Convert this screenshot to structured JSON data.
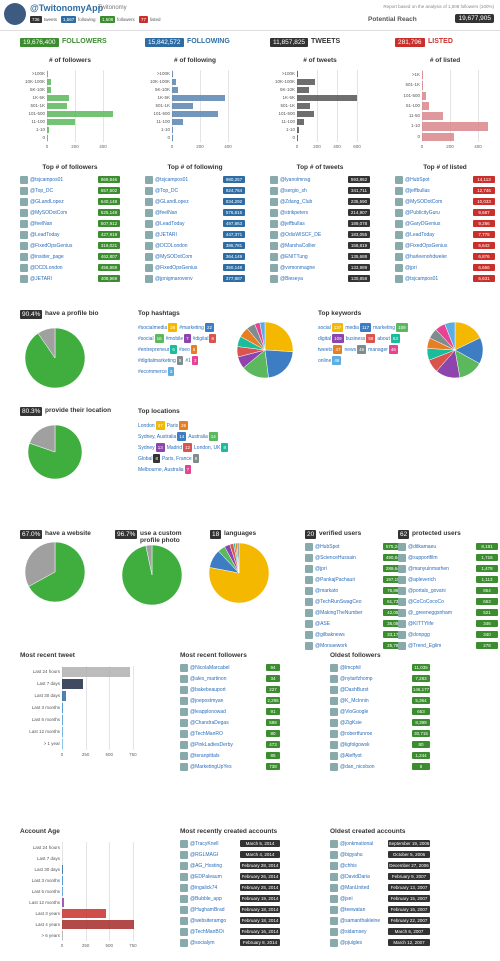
{
  "header": {
    "app_name": "@TwitonomyApp",
    "subtitle": "Twitonomy",
    "stats": [
      {
        "value": "736",
        "label": "tweets"
      },
      {
        "value": "1,567",
        "label": "following"
      },
      {
        "value": "1,508",
        "label": "followers"
      },
      {
        "value": "77",
        "label": "listed"
      }
    ],
    "report_note": "Report based on the analysis of 1,508 followers (100%)",
    "reach_label": "Potential Reach",
    "reach_value": "19,677,905"
  },
  "summary": [
    {
      "value": "19,676,400",
      "label": "FOLLOWERS",
      "color": "#3c8d2f"
    },
    {
      "value": "15,842,572",
      "label": "FOLLOWING",
      "color": "#2e6da4"
    },
    {
      "value": "11,857,825",
      "label": "TWEETS",
      "color": "#333333"
    },
    {
      "value": "281,796",
      "label": "LISTED",
      "color": "#c9302c"
    }
  ],
  "histograms": [
    {
      "title": "# of followers",
      "color": "#5cb85c",
      "categories": [
        ">100K",
        "10K-100K",
        "5K-10K",
        "1K-5K",
        "501-1K",
        "101-500",
        "11-100",
        "1-10",
        "0"
      ],
      "values": [
        8,
        25,
        30,
        160,
        140,
        470,
        200,
        15,
        2
      ],
      "xlim": [
        0,
        500
      ],
      "xticks": [
        0,
        200,
        400
      ]
    },
    {
      "title": "# of following",
      "color": "#5b84b1",
      "categories": [
        ">100K",
        "10K-100K",
        "5K-10K",
        "1K-5K",
        "501-1K",
        "101-500",
        "11-100",
        "1-10",
        "0"
      ],
      "values": [
        10,
        30,
        40,
        380,
        150,
        330,
        80,
        10,
        2
      ],
      "xlim": [
        0,
        500
      ],
      "xticks": [
        0,
        200,
        400
      ]
    },
    {
      "title": "# of tweets",
      "color": "#555555",
      "categories": [
        ">100K",
        "10K-100K",
        "5K-10K",
        "1K-5K",
        "501-1K",
        "101-500",
        "11-100",
        "1-10",
        "0"
      ],
      "values": [
        5,
        180,
        120,
        600,
        130,
        170,
        70,
        20,
        10
      ],
      "xlim": [
        0,
        700
      ],
      "xticks": [
        0,
        200,
        400,
        600
      ]
    },
    {
      "title": "# of listed",
      "color": "#d9868a",
      "categories": [
        ">1K",
        "501-1K",
        "101-500",
        "51-100",
        "11-50",
        "1-10",
        "0"
      ],
      "values": [
        2,
        10,
        30,
        50,
        150,
        470,
        230
      ],
      "xlim": [
        0,
        500
      ],
      "xticks": [
        0,
        200,
        400
      ]
    }
  ],
  "top_lists": [
    {
      "title": "Top # of followers",
      "badge_color": "#3c8d2f",
      "items": [
        {
          "name": "@tsjcampos01",
          "value": "869,846"
        },
        {
          "name": "@Top_DC",
          "value": "657,602"
        },
        {
          "name": "@GLandLopez",
          "value": "640,148"
        },
        {
          "name": "@MySODotCom",
          "value": "525,149"
        },
        {
          "name": "@feelNan",
          "value": "507,912"
        },
        {
          "name": "@LeadToday",
          "value": "427,919"
        },
        {
          "name": "@FixedOpsGenius",
          "value": "319,021"
        },
        {
          "name": "@insider_page",
          "value": "462,807"
        },
        {
          "name": "@DCDLondon",
          "value": "458,859"
        },
        {
          "name": "@JETARI",
          "value": "408,969"
        }
      ]
    },
    {
      "title": "Top # of following",
      "badge_color": "#2e6da4",
      "items": [
        {
          "name": "@tsjcampos01",
          "value": "980,257"
        },
        {
          "name": "@Top_DC",
          "value": "924,764"
        },
        {
          "name": "@GLandLopez",
          "value": "834,292"
        },
        {
          "name": "@feelNan",
          "value": "576,815"
        },
        {
          "name": "@LeadToday",
          "value": "497,863"
        },
        {
          "name": "@JETARI",
          "value": "447,371"
        },
        {
          "name": "@DCDLondon",
          "value": "386,781"
        },
        {
          "name": "@MySODotCom",
          "value": "364,149"
        },
        {
          "name": "@FixedOpsGenius",
          "value": "350,148"
        },
        {
          "name": "@jpnigmarovenv",
          "value": "377,887"
        }
      ]
    },
    {
      "title": "Top # of tweets",
      "badge_color": "#333333",
      "items": [
        {
          "name": "@lyanolmnsg",
          "value": "593,862"
        },
        {
          "name": "@sergio_sh",
          "value": "341,711"
        },
        {
          "name": "@Zdang_Club",
          "value": "235,590"
        },
        {
          "name": "@strikpeters",
          "value": "214,907"
        },
        {
          "name": "@jeffbullas",
          "value": "189,078"
        },
        {
          "name": "@OdisWISCF_DE",
          "value": "183,055"
        },
        {
          "name": "@MarshaCollier",
          "value": "158,819"
        },
        {
          "name": "@ENITTung",
          "value": "135,688"
        },
        {
          "name": "@vvmonmagne",
          "value": "133,989"
        },
        {
          "name": "@Bieseya",
          "value": "130,858"
        }
      ]
    },
    {
      "title": "Top # of listed",
      "badge_color": "#c9302c",
      "items": [
        {
          "name": "@HubSpot",
          "value": "14,113"
        },
        {
          "name": "@jeffbullas",
          "value": "12,746"
        },
        {
          "name": "@MySODotCom",
          "value": "10,033"
        },
        {
          "name": "@PublicityGuru",
          "value": "9,687"
        },
        {
          "name": "@GaryDGenius",
          "value": "9,286"
        },
        {
          "name": "@LeadToday",
          "value": "7,775"
        },
        {
          "name": "@FixedOpsGenius",
          "value": "6,642"
        },
        {
          "name": "@harleenohdweler",
          "value": "6,876"
        },
        {
          "name": "@jpri",
          "value": "6,656"
        },
        {
          "name": "@tsjcampos01",
          "value": "6,631"
        }
      ]
    }
  ],
  "bio": {
    "percent": {
      "value": 90.4,
      "label": "90.4%"
    },
    "label": "have a profile bio",
    "color": "#3fae3f",
    "rest_color": "#a0a0a0"
  },
  "hashtags": {
    "title": "Top hashtags",
    "items": [
      {
        "name": "#socialmedia",
        "count": 26,
        "color": "#f5b800"
      },
      {
        "name": "#marketing",
        "count": 22,
        "color": "#3c7dc4"
      },
      {
        "name": "#social",
        "count": 16,
        "color": "#5cb85c"
      },
      {
        "name": "#mobile",
        "count": 7,
        "color": "#8e44ad"
      },
      {
        "name": "#digital",
        "count": 6,
        "color": "#d9534f"
      },
      {
        "name": "#entrepreneur",
        "count": 6,
        "color": "#1abc9c"
      },
      {
        "name": "#seo",
        "count": 6,
        "color": "#e67e22"
      },
      {
        "name": "#digitalmarketing",
        "count": 5,
        "color": "#7f8c8d"
      },
      {
        "name": "#1",
        "count": 3,
        "color": "#e84393"
      },
      {
        "name": "#ecommerce",
        "count": 3,
        "color": "#5dade2"
      }
    ]
  },
  "keywords": {
    "title": "Top keywords",
    "items": [
      {
        "name": "social",
        "count": 137,
        "color": "#f5b800"
      },
      {
        "name": "media",
        "count": 117,
        "color": "#3c7dc4"
      },
      {
        "name": "marketing",
        "count": 109,
        "color": "#5cb85c"
      },
      {
        "name": "digital",
        "count": 109,
        "color": "#8e44ad"
      },
      {
        "name": "business",
        "count": 59,
        "color": "#d9534f"
      },
      {
        "name": "about",
        "count": 53,
        "color": "#1abc9c"
      },
      {
        "name": "tweets",
        "count": 47,
        "color": "#e67e22"
      },
      {
        "name": "news",
        "count": 46,
        "color": "#7f8c8d"
      },
      {
        "name": "manager",
        "count": 46,
        "color": "#e84393"
      },
      {
        "name": "online",
        "count": 46,
        "color": "#5dade2"
      }
    ]
  },
  "location": {
    "percent": {
      "value": 80.3,
      "label": "80.3%"
    },
    "label": "provide their location",
    "color": "#3fae3f",
    "rest_color": "#a0a0a0"
  },
  "locations": {
    "title": "Top locations",
    "items": [
      {
        "name": "London",
        "count": 37,
        "color": "#f5b800"
      },
      {
        "name": "Paris",
        "count": 26,
        "color": "#e67e22"
      },
      {
        "name": "Sydney, Australia",
        "count": 14,
        "color": "#3c7dc4"
      },
      {
        "name": "Australia",
        "count": 14,
        "color": "#5cb85c"
      },
      {
        "name": "Sydney",
        "count": 13,
        "color": "#8e44ad"
      },
      {
        "name": "Madrid",
        "count": 12,
        "color": "#d9534f"
      },
      {
        "name": "London, UK",
        "count": 8,
        "color": "#1abc9c"
      },
      {
        "name": "Global",
        "count": 8,
        "color": "#333333"
      },
      {
        "name": "Paris, France",
        "count": 8,
        "color": "#7f8c8d"
      },
      {
        "name": "Melbourne, Australia",
        "count": 7,
        "color": "#e84393"
      }
    ]
  },
  "website": {
    "percent": {
      "value": 67.0,
      "label": "67.0%"
    },
    "label": "have a website",
    "color": "#3fae3f",
    "rest_color": "#a0a0a0"
  },
  "profile_photo": {
    "percent": {
      "value": 96.7,
      "label": "96.7%"
    },
    "label": "use a custom profile photo",
    "color": "#3fae3f",
    "rest_color": "#a0a0a0"
  },
  "languages": {
    "count": "18",
    "label": "languages",
    "slices": [
      78,
      10,
      4,
      3,
      2,
      1,
      1,
      1
    ],
    "colors": [
      "#f5b800",
      "#3c7dc4",
      "#5cb85c",
      "#8e44ad",
      "#d9534f",
      "#1abc9c",
      "#e67e22",
      "#7f8c8d"
    ]
  },
  "verified_users": {
    "count": "20",
    "label": "verified users",
    "badge_color": "#3c8d2f",
    "items": [
      {
        "name": "@HubSpot",
        "value": "575,244"
      },
      {
        "name": "@ScienceHussain",
        "value": "490,848"
      },
      {
        "name": "@jpri",
        "value": "289,640"
      },
      {
        "name": "@PankajPachauri",
        "value": "197,155"
      },
      {
        "name": "@markato",
        "value": "76,886"
      },
      {
        "name": "@TechRunSwagCeo",
        "value": "61,737"
      },
      {
        "name": "@MakingTheNumber",
        "value": "42,058"
      },
      {
        "name": "@ASE",
        "value": "36,080"
      },
      {
        "name": "@gilbaknews",
        "value": "33,179"
      },
      {
        "name": "@Morsaework",
        "value": "25,783"
      }
    ]
  },
  "protected_users": {
    "count": "62",
    "label": "protected users",
    "badge_color": "#3c8d2f",
    "items": [
      {
        "name": "@ditkamaeu",
        "value": "8,181"
      },
      {
        "name": "@supportfilm",
        "value": "1,716"
      },
      {
        "name": "@manyuinmarhen",
        "value": "1,478"
      },
      {
        "name": "@apleverich",
        "value": "1,113"
      },
      {
        "name": "@portals_govani",
        "value": "854"
      },
      {
        "name": "@CoCoCocoCo",
        "value": "653"
      },
      {
        "name": "@_greeneggsnham",
        "value": "521"
      },
      {
        "name": "@KITTYlife",
        "value": "346"
      },
      {
        "name": "@donpgg",
        "value": "340"
      },
      {
        "name": "@Trend_Eglim",
        "value": "278"
      }
    ]
  },
  "recent_tweet": {
    "title": "Most recent tweet",
    "categories": [
      "Last 24 hours",
      "Last 7 days",
      "Last 30 days",
      "Last 3 months",
      "Last 6 months",
      "Last 12 months",
      "> 1 year"
    ],
    "values": [
      720,
      220,
      40,
      15,
      8,
      5,
      5
    ],
    "colors": [
      "#b0b0b0",
      "#1f2a44",
      "#2e6da4",
      "#3c8fd6",
      "#4aa3e0",
      "#5bb0e6",
      "#7cc0ec"
    ],
    "xlim": [
      0,
      900
    ],
    "xticks": [
      0,
      250,
      500,
      750
    ]
  },
  "recent_followers": {
    "title": "Most recent followers",
    "badge_color": "#3c8d2f",
    "items": [
      {
        "name": "@NicolaMarcabel",
        "value": "94"
      },
      {
        "name": "@alex_martinon",
        "value": "34"
      },
      {
        "name": "@bakebeauport",
        "value": "227"
      },
      {
        "name": "@joepostmyan",
        "value": "2,295"
      },
      {
        "name": "@leapplonowad",
        "value": "91"
      },
      {
        "name": "@ChandraDegas",
        "value": "598"
      },
      {
        "name": "@TechManRO",
        "value": "80"
      },
      {
        "name": "@PinkLadiesDerby",
        "value": "473"
      },
      {
        "name": "@teranpittals",
        "value": "85"
      },
      {
        "name": "@MarketingUpYes",
        "value": "738"
      }
    ]
  },
  "oldest_followers": {
    "title": "Oldest followers",
    "badge_color": "#3c8d2f",
    "items": [
      {
        "name": "@lmcphil",
        "value": "11,035"
      },
      {
        "name": "@nytarfzhomp",
        "value": "7,283"
      },
      {
        "name": "@DashBurst",
        "value": "146,177"
      },
      {
        "name": "@K_McInnin",
        "value": "5,364"
      },
      {
        "name": "@VioGoogle",
        "value": "653"
      },
      {
        "name": "@ZigKsie",
        "value": "8,399"
      },
      {
        "name": "@robertfunroe",
        "value": "30,715"
      },
      {
        "name": "@ligfolgowsk",
        "value": "80"
      },
      {
        "name": "@Aleffyot",
        "value": "1,244"
      },
      {
        "name": "@dan_nicolson",
        "value": "6"
      }
    ]
  },
  "account_age": {
    "title": "Account Age",
    "categories": [
      "Last 24 hours",
      "Last 7 days",
      "Last 30 days",
      "Last 3 months",
      "Last 6 months",
      "Last 12 months",
      "Last 3 years",
      "Last 4 years",
      "> 6 years"
    ],
    "values": [
      0,
      0,
      1,
      8,
      8,
      25,
      470,
      760,
      10
    ],
    "colors": [
      "#b0b0b0",
      "#b0b0b0",
      "#2e6da4",
      "#3c8fd6",
      "#4aa3e0",
      "#8e44ad",
      "#c9302c",
      "#a52a2a",
      "#b0b0b0"
    ],
    "xlim": [
      0,
      900
    ],
    "xticks": [
      0,
      250,
      500,
      750
    ]
  },
  "recent_accounts": {
    "title": "Most recently created accounts",
    "badge_color": "#333333",
    "items": [
      {
        "name": "@TracyKnell",
        "value": "March 5, 2014"
      },
      {
        "name": "@RGLMAGI",
        "value": "March 4, 2014"
      },
      {
        "name": "@AG_Hosting",
        "value": "February 28, 2014"
      },
      {
        "name": "@EDPaleaum",
        "value": "February 26, 2014"
      },
      {
        "name": "@ingalick74",
        "value": "February 25, 2014"
      },
      {
        "name": "@Bubble_app",
        "value": "February 19, 2014"
      },
      {
        "name": "@HughamBrad",
        "value": "February 18, 2014"
      },
      {
        "name": "@websiteramgo",
        "value": "February 18, 2014"
      },
      {
        "name": "@TechManBOi",
        "value": "February 16, 2014"
      },
      {
        "name": "@socialym",
        "value": "February 8, 2014"
      }
    ]
  },
  "oldest_accounts": {
    "title": "Oldest created accounts",
    "badge_color": "#333333",
    "items": [
      {
        "name": "@jonkmational",
        "value": "September 19, 2006"
      },
      {
        "name": "@bigyahu",
        "value": "October 5, 2006"
      },
      {
        "name": "@chhis",
        "value": "December 27, 2006"
      },
      {
        "name": "@DavidDaria",
        "value": "February 9, 2007"
      },
      {
        "name": "@ManUnited",
        "value": "February 13, 2007"
      },
      {
        "name": "@jsei",
        "value": "February 15, 2007"
      },
      {
        "name": "@teewatan",
        "value": "February 16, 2007"
      },
      {
        "name": "@samanthakleine",
        "value": "February 22, 2007"
      },
      {
        "name": "@sidarnsey",
        "value": "March 6, 2007"
      },
      {
        "name": "@pjuigles",
        "value": "March 12, 2007"
      }
    ]
  }
}
